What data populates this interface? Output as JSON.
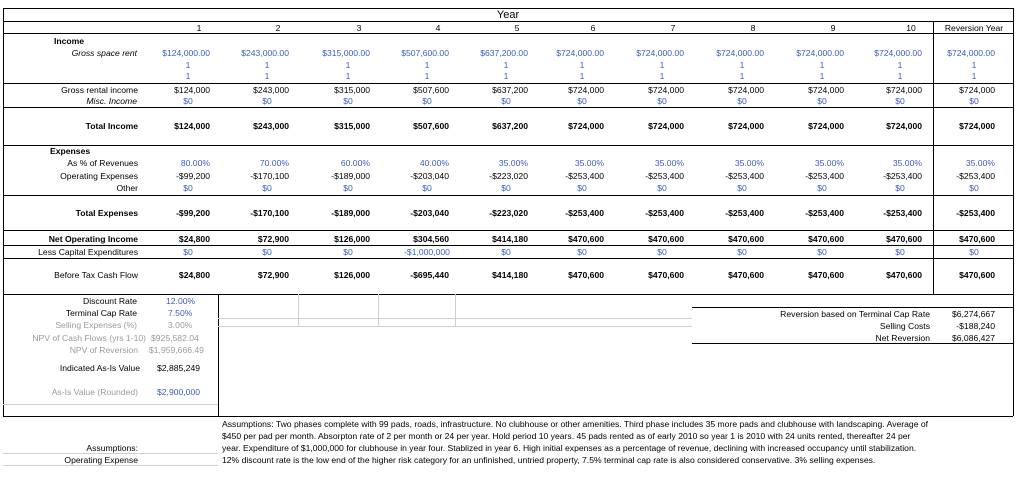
{
  "header": {
    "title": "Year",
    "columns": [
      "1",
      "2",
      "3",
      "4",
      "5",
      "6",
      "7",
      "8",
      "9",
      "10",
      "Reversion Year"
    ]
  },
  "income": {
    "label": "Income",
    "gross_space_rent": {
      "label": "Gross space rent",
      "values": [
        "$124,000.00",
        "$243,000.00",
        "$315,000.00",
        "$507,600.00",
        "$637,200.00",
        "$724,000.00",
        "$724,000.00",
        "$724,000.00",
        "$724,000.00",
        "$724,000.00",
        "$724,000.00"
      ]
    },
    "ones_a": [
      "1",
      "1",
      "1",
      "1",
      "1",
      "1",
      "1",
      "1",
      "1",
      "1",
      "1"
    ],
    "ones_b": [
      "1",
      "1",
      "1",
      "1",
      "1",
      "1",
      "1",
      "1",
      "1",
      "1",
      "1"
    ],
    "gross_rental_income": {
      "label": "Gross rental income",
      "values": [
        "$124,000",
        "$243,000",
        "$315,000",
        "$507,600",
        "$637,200",
        "$724,000",
        "$724,000",
        "$724,000",
        "$724,000",
        "$724,000",
        "$724,000"
      ]
    },
    "misc_income": {
      "label": "Misc. Income",
      "values": [
        "$0",
        "$0",
        "$0",
        "$0",
        "$0",
        "$0",
        "$0",
        "$0",
        "$0",
        "$0",
        "$0"
      ]
    },
    "total_income": {
      "label": "Total Income",
      "values": [
        "$124,000",
        "$243,000",
        "$315,000",
        "$507,600",
        "$637,200",
        "$724,000",
        "$724,000",
        "$724,000",
        "$724,000",
        "$724,000",
        "$724,000"
      ]
    }
  },
  "expenses": {
    "label": "Expenses",
    "pct_revenue": {
      "label": "As % of Revenues",
      "values": [
        "80.00%",
        "70.00%",
        "60.00%",
        "40.00%",
        "35.00%",
        "35.00%",
        "35.00%",
        "35.00%",
        "35.00%",
        "35.00%",
        "35.00%"
      ]
    },
    "operating": {
      "label": "Operating Expenses",
      "values": [
        "-$99,200",
        "-$170,100",
        "-$189,000",
        "-$203,040",
        "-$223,020",
        "-$253,400",
        "-$253,400",
        "-$253,400",
        "-$253,400",
        "-$253,400",
        "-$253,400"
      ]
    },
    "other": {
      "label": "Other",
      "values": [
        "$0",
        "$0",
        "$0",
        "$0",
        "$0",
        "$0",
        "$0",
        "$0",
        "$0",
        "$0",
        "$0"
      ]
    },
    "total": {
      "label": "Total Expenses",
      "values": [
        "-$99,200",
        "-$170,100",
        "-$189,000",
        "-$203,040",
        "-$223,020",
        "-$253,400",
        "-$253,400",
        "-$253,400",
        "-$253,400",
        "-$253,400",
        "-$253,400"
      ]
    }
  },
  "noi": {
    "label": "Net Operating Income",
    "values": [
      "$24,800",
      "$72,900",
      "$126,000",
      "$304,560",
      "$414,180",
      "$470,600",
      "$470,600",
      "$470,600",
      "$470,600",
      "$470,600",
      "$470,600"
    ]
  },
  "capex": {
    "label": "Less Capital Expenditures",
    "values": [
      "$0",
      "$0",
      "$0",
      "-$1,000,000",
      "$0",
      "$0",
      "$0",
      "$0",
      "$0",
      "$0",
      "$0"
    ]
  },
  "btcf": {
    "label": "Before Tax Cash Flow",
    "values": [
      "$24,800",
      "$72,900",
      "$126,000",
      "-$695,440",
      "$414,180",
      "$470,600",
      "$470,600",
      "$470,600",
      "$470,600",
      "$470,600",
      "$470,600"
    ]
  },
  "valuation": [
    {
      "label": "Discount Rate",
      "value": "12.00%"
    },
    {
      "label": "Terminal Cap Rate",
      "value": "7.50%"
    },
    {
      "label": "Selling Expenses (%)",
      "value": "3.00%"
    },
    {
      "label": "NPV of Cash Flows (yrs 1-10)",
      "value": "$925,582.04"
    },
    {
      "label": "NPV of Reversion",
      "value": "$1,959,666.49"
    },
    {
      "label": "Indicated As-Is Value",
      "value": "$2,885,249"
    },
    {
      "label": "As-Is Value (Rounded)",
      "value": "$2,900,000"
    }
  ],
  "reversion": [
    {
      "label": "Reversion based on Terminal Cap Rate",
      "value": "$6,274,667"
    },
    {
      "label": "Selling Costs",
      "value": "-$188,240"
    },
    {
      "label": "Net Reversion",
      "value": "$6,086,427"
    }
  ],
  "notes": {
    "assumptions_label": "Assumptions:",
    "opex_label": "Operating Expense",
    "lines": [
      "Assumptions: Two phases complete with 99 pads, roads, infrastructure. No clubhouse or other amenities. Third phase includes 35 more pads and clubhouse with landscaping. Average of",
      "$450 per pad per month. Absorpton rate of 2 per month or 24 per year. Hold period 10 years. 45 pads rented as of early 2010 so year 1 is 2010 with 24 units rented, thereafter 24 per",
      "year. Expenditure of $1,000,000 for clubhouse in year four. Stablized in year 6. High initial expenses as a percentage of revenue, declining with increased occupancy until stabilization.",
      "12% discount rate is the low end of the higher risk category for an unfinished, untried property, 7.5% terminal cap rate is also considered conservative. 3% selling expenses."
    ]
  }
}
